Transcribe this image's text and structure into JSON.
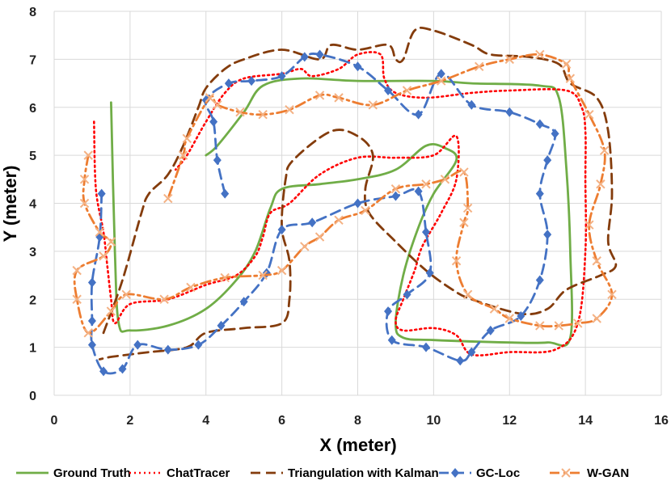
{
  "chart_data": {
    "type": "line",
    "title": "",
    "xlabel": "X (meter)",
    "ylabel": "Y (meter)",
    "xlim": [
      0,
      16
    ],
    "ylim": [
      0,
      8
    ],
    "xticks": [
      0,
      2,
      4,
      6,
      8,
      10,
      12,
      14,
      16
    ],
    "yticks": [
      0,
      1,
      2,
      3,
      4,
      5,
      6,
      7,
      8
    ],
    "grid": true,
    "legend_position": "bottom",
    "series": [
      {
        "name": "Ground Truth",
        "color": "#70ad47",
        "style": "solid",
        "marker": "none",
        "points": [
          [
            1.5,
            6.1
          ],
          [
            1.6,
            3.0
          ],
          [
            1.7,
            1.5
          ],
          [
            2.0,
            1.35
          ],
          [
            3.0,
            1.45
          ],
          [
            4.0,
            1.8
          ],
          [
            4.8,
            2.4
          ],
          [
            5.3,
            3.0
          ],
          [
            5.7,
            3.9
          ],
          [
            6.0,
            4.3
          ],
          [
            7.0,
            4.4
          ],
          [
            8.0,
            4.5
          ],
          [
            9.0,
            4.7
          ],
          [
            9.8,
            5.2
          ],
          [
            10.3,
            5.15
          ],
          [
            10.6,
            4.9
          ],
          [
            10.0,
            4.2
          ],
          [
            9.6,
            3.5
          ],
          [
            9.2,
            2.5
          ],
          [
            9.0,
            1.5
          ],
          [
            9.2,
            1.2
          ],
          [
            10.0,
            1.15
          ],
          [
            12.0,
            1.1
          ],
          [
            13.0,
            1.1
          ],
          [
            13.6,
            1.2
          ],
          [
            13.6,
            3.0
          ],
          [
            13.5,
            4.7
          ],
          [
            13.3,
            6.2
          ],
          [
            12.8,
            6.45
          ],
          [
            11.0,
            6.5
          ],
          [
            10.0,
            6.55
          ],
          [
            8.0,
            6.55
          ],
          [
            6.5,
            6.6
          ],
          [
            5.5,
            6.45
          ],
          [
            5.0,
            5.9
          ],
          [
            4.3,
            5.2
          ],
          [
            4.0,
            5.0
          ]
        ]
      },
      {
        "name": "ChatTracer",
        "color": "#ff0000",
        "style": "dotted",
        "marker": "none",
        "points": [
          [
            1.05,
            5.7
          ],
          [
            1.1,
            4.3
          ],
          [
            1.3,
            3.4
          ],
          [
            1.4,
            2.7
          ],
          [
            1.5,
            2.0
          ],
          [
            1.6,
            1.5
          ],
          [
            2.0,
            1.9
          ],
          [
            3.0,
            2.0
          ],
          [
            4.0,
            2.3
          ],
          [
            4.8,
            2.5
          ],
          [
            5.3,
            2.9
          ],
          [
            5.5,
            3.3
          ],
          [
            5.7,
            3.8
          ],
          [
            6.2,
            4.0
          ],
          [
            7.0,
            4.6
          ],
          [
            8.0,
            4.95
          ],
          [
            9.0,
            4.95
          ],
          [
            10.0,
            5.0
          ],
          [
            10.6,
            5.4
          ],
          [
            10.6,
            4.5
          ],
          [
            10.2,
            3.8
          ],
          [
            9.7,
            3.1
          ],
          [
            9.5,
            2.6
          ],
          [
            9.2,
            2.0
          ],
          [
            9.0,
            1.55
          ],
          [
            9.2,
            1.35
          ],
          [
            10.0,
            1.4
          ],
          [
            10.6,
            1.25
          ],
          [
            11.0,
            0.85
          ],
          [
            12.0,
            0.9
          ],
          [
            13.2,
            0.95
          ],
          [
            13.8,
            1.5
          ],
          [
            14.0,
            3.0
          ],
          [
            14.0,
            4.5
          ],
          [
            14.0,
            5.5
          ],
          [
            13.9,
            6.0
          ],
          [
            13.5,
            6.35
          ],
          [
            12.0,
            6.35
          ],
          [
            11.0,
            6.3
          ],
          [
            9.8,
            6.2
          ],
          [
            9.0,
            6.3
          ],
          [
            8.7,
            6.6
          ],
          [
            8.6,
            7.1
          ],
          [
            8.0,
            7.1
          ],
          [
            7.5,
            6.8
          ],
          [
            6.8,
            6.65
          ],
          [
            6.5,
            6.8
          ],
          [
            6.0,
            6.7
          ],
          [
            5.0,
            6.6
          ],
          [
            4.5,
            6.3
          ],
          [
            4.0,
            5.7
          ],
          [
            3.5,
            5.0
          ],
          [
            3.2,
            4.7
          ]
        ]
      },
      {
        "name": "Triangulation with Kalman",
        "color": "#843c0c",
        "style": "dashed",
        "marker": "none",
        "points": [
          [
            1.3,
            1.3
          ],
          [
            1.8,
            2.4
          ],
          [
            2.3,
            3.8
          ],
          [
            2.5,
            4.2
          ],
          [
            3.0,
            4.6
          ],
          [
            3.4,
            5.2
          ],
          [
            3.8,
            6.0
          ],
          [
            4.0,
            6.4
          ],
          [
            4.5,
            6.8
          ],
          [
            5.0,
            7.0
          ],
          [
            6.0,
            7.2
          ],
          [
            7.0,
            7.0
          ],
          [
            7.3,
            7.3
          ],
          [
            8.0,
            7.2
          ],
          [
            8.8,
            7.3
          ],
          [
            9.0,
            7.0
          ],
          [
            9.2,
            7.0
          ],
          [
            9.5,
            7.6
          ],
          [
            10.0,
            7.6
          ],
          [
            11.0,
            7.3
          ],
          [
            11.5,
            7.1
          ],
          [
            12.5,
            7.05
          ],
          [
            13.3,
            6.9
          ],
          [
            13.6,
            6.5
          ],
          [
            14.3,
            6.2
          ],
          [
            14.6,
            5.5
          ],
          [
            14.7,
            4.2
          ],
          [
            14.6,
            3.2
          ],
          [
            14.8,
            2.7
          ],
          [
            14.4,
            2.5
          ],
          [
            13.5,
            2.2
          ],
          [
            13.0,
            1.8
          ],
          [
            12.3,
            1.7
          ],
          [
            11.0,
            2.0
          ],
          [
            10.5,
            2.2
          ],
          [
            9.8,
            2.6
          ],
          [
            9.0,
            3.2
          ],
          [
            8.3,
            3.8
          ],
          [
            8.2,
            4.3
          ],
          [
            8.4,
            5.0
          ],
          [
            8.0,
            5.4
          ],
          [
            7.3,
            5.5
          ],
          [
            6.3,
            4.9
          ],
          [
            6.1,
            4.5
          ],
          [
            6.0,
            3.5
          ],
          [
            6.2,
            2.8
          ],
          [
            6.2,
            2.0
          ],
          [
            6.0,
            1.5
          ],
          [
            5.0,
            1.4
          ],
          [
            4.0,
            1.3
          ],
          [
            3.5,
            1.0
          ],
          [
            2.5,
            0.9
          ],
          [
            2.0,
            0.85
          ],
          [
            1.5,
            0.8
          ],
          [
            1.2,
            0.75
          ]
        ]
      },
      {
        "name": "GC-Loc",
        "color": "#4472c4",
        "style": "dashed",
        "marker": "diamond",
        "points": [
          [
            4.5,
            4.2
          ],
          [
            4.3,
            4.9
          ],
          [
            4.2,
            5.7
          ],
          [
            4.0,
            6.15
          ],
          [
            4.6,
            6.5
          ],
          [
            5.2,
            6.55
          ],
          [
            6.0,
            6.65
          ],
          [
            6.6,
            7.05
          ],
          [
            7.0,
            7.1
          ],
          [
            8.0,
            6.85
          ],
          [
            8.8,
            6.35
          ],
          [
            9.6,
            5.85
          ],
          [
            10.2,
            6.7
          ],
          [
            11.0,
            6.05
          ],
          [
            12.0,
            5.9
          ],
          [
            12.8,
            5.65
          ],
          [
            13.2,
            5.45
          ],
          [
            13.0,
            4.9
          ],
          [
            12.8,
            4.2
          ],
          [
            13.0,
            3.35
          ],
          [
            12.8,
            2.4
          ],
          [
            12.3,
            1.65
          ],
          [
            11.5,
            1.35
          ],
          [
            11.0,
            0.9
          ],
          [
            10.7,
            0.72
          ],
          [
            9.8,
            1.0
          ],
          [
            8.9,
            1.15
          ],
          [
            8.8,
            1.75
          ],
          [
            9.3,
            2.1
          ],
          [
            9.9,
            2.55
          ],
          [
            9.8,
            3.4
          ],
          [
            9.6,
            4.25
          ],
          [
            9.0,
            4.15
          ],
          [
            8.0,
            4.0
          ],
          [
            6.8,
            3.6
          ],
          [
            6.0,
            3.45
          ],
          [
            5.6,
            2.55
          ],
          [
            5.0,
            1.95
          ],
          [
            4.4,
            1.45
          ],
          [
            3.8,
            1.05
          ],
          [
            3.0,
            0.95
          ],
          [
            2.2,
            1.05
          ],
          [
            1.8,
            0.55
          ],
          [
            1.3,
            0.5
          ],
          [
            1.0,
            1.05
          ],
          [
            1.0,
            1.55
          ],
          [
            1.0,
            2.35
          ],
          [
            1.2,
            3.3
          ],
          [
            1.25,
            4.2
          ]
        ]
      },
      {
        "name": "W-GAN",
        "color": "#ed7d31",
        "style": "dashdot",
        "marker": "x",
        "points": [
          [
            0.9,
            5.0
          ],
          [
            0.8,
            4.5
          ],
          [
            0.8,
            4.0
          ],
          [
            1.2,
            3.4
          ],
          [
            1.5,
            3.2
          ],
          [
            1.3,
            2.9
          ],
          [
            0.6,
            2.6
          ],
          [
            0.6,
            2.0
          ],
          [
            0.9,
            1.3
          ],
          [
            1.5,
            1.75
          ],
          [
            1.9,
            2.1
          ],
          [
            2.9,
            2.0
          ],
          [
            3.6,
            2.25
          ],
          [
            4.5,
            2.45
          ],
          [
            5.5,
            2.5
          ],
          [
            6.0,
            2.6
          ],
          [
            6.6,
            3.1
          ],
          [
            7.0,
            3.3
          ],
          [
            7.5,
            3.65
          ],
          [
            8.2,
            3.85
          ],
          [
            9.0,
            4.3
          ],
          [
            9.8,
            4.4
          ],
          [
            10.3,
            4.5
          ],
          [
            10.8,
            4.65
          ],
          [
            10.9,
            3.9
          ],
          [
            10.8,
            3.6
          ],
          [
            10.6,
            2.8
          ],
          [
            10.9,
            2.1
          ],
          [
            11.6,
            1.8
          ],
          [
            12.0,
            1.6
          ],
          [
            12.8,
            1.45
          ],
          [
            13.3,
            1.45
          ],
          [
            13.8,
            1.5
          ],
          [
            14.3,
            1.6
          ],
          [
            14.7,
            2.1
          ],
          [
            14.3,
            2.8
          ],
          [
            14.1,
            3.55
          ],
          [
            14.4,
            4.4
          ],
          [
            14.5,
            5.1
          ],
          [
            14.1,
            5.85
          ],
          [
            13.6,
            6.6
          ],
          [
            13.5,
            6.9
          ],
          [
            12.8,
            7.1
          ],
          [
            12.0,
            7.0
          ],
          [
            11.2,
            6.85
          ],
          [
            10.2,
            6.55
          ],
          [
            9.3,
            6.35
          ],
          [
            8.4,
            6.05
          ],
          [
            7.5,
            6.2
          ],
          [
            7.0,
            6.25
          ],
          [
            6.2,
            5.95
          ],
          [
            5.5,
            5.85
          ],
          [
            4.9,
            5.9
          ],
          [
            4.3,
            6.05
          ],
          [
            4.1,
            6.2
          ],
          [
            3.5,
            5.35
          ],
          [
            3.4,
            5.0
          ],
          [
            3.0,
            4.1
          ]
        ]
      }
    ]
  }
}
